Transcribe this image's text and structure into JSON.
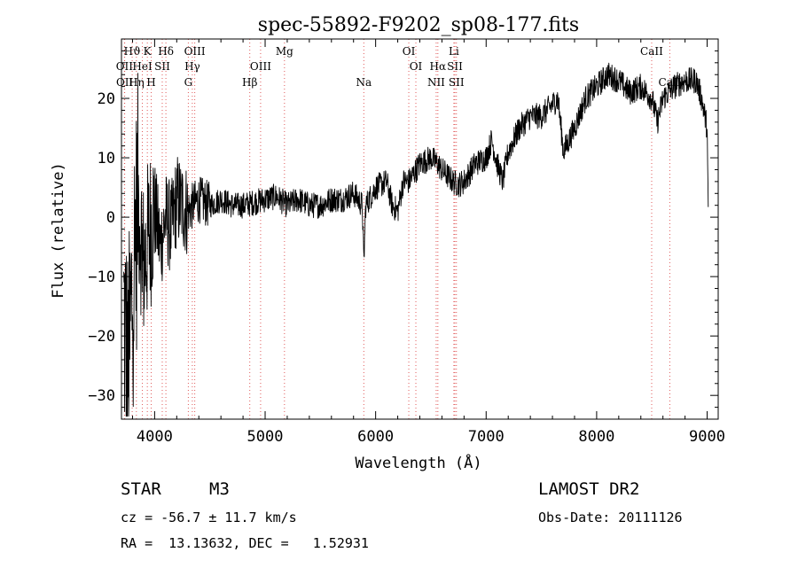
{
  "chart_data": {
    "type": "line",
    "title": "spec-55892-F9202_sp08-177.fits",
    "xlabel": "Wavelength (Å)",
    "ylabel": "Flux (relative)",
    "xlim": [
      3700,
      9100
    ],
    "ylim": [
      -34,
      30
    ],
    "xticks": [
      4000,
      5000,
      6000,
      7000,
      8000,
      9000
    ],
    "yticks": [
      -30,
      -20,
      -10,
      0,
      10,
      20
    ],
    "grid": false,
    "line_color": "#000000",
    "marker_color": "#e05a5a",
    "spectrum_knots": [
      {
        "x": 3720,
        "y": -16
      },
      {
        "x": 3760,
        "y": -27
      },
      {
        "x": 3800,
        "y": -12
      },
      {
        "x": 3850,
        "y": 3
      },
      {
        "x": 3900,
        "y": -8
      },
      {
        "x": 3950,
        "y": -3
      },
      {
        "x": 4000,
        "y": 2
      },
      {
        "x": 4050,
        "y": -5
      },
      {
        "x": 4100,
        "y": 0
      },
      {
        "x": 4150,
        "y": -2
      },
      {
        "x": 4200,
        "y": 3
      },
      {
        "x": 4300,
        "y": 1
      },
      {
        "x": 4400,
        "y": 3
      },
      {
        "x": 4500,
        "y": 2
      },
      {
        "x": 4600,
        "y": 3
      },
      {
        "x": 4700,
        "y": 2
      },
      {
        "x": 4800,
        "y": 2
      },
      {
        "x": 4900,
        "y": 2.5
      },
      {
        "x": 5000,
        "y": 3
      },
      {
        "x": 5100,
        "y": 3.5
      },
      {
        "x": 5200,
        "y": 2
      },
      {
        "x": 5300,
        "y": 3
      },
      {
        "x": 5400,
        "y": 2
      },
      {
        "x": 5500,
        "y": 2
      },
      {
        "x": 5600,
        "y": 3
      },
      {
        "x": 5700,
        "y": 3
      },
      {
        "x": 5800,
        "y": 4
      },
      {
        "x": 5880,
        "y": 2
      },
      {
        "x": 5893,
        "y": -8
      },
      {
        "x": 5910,
        "y": 2
      },
      {
        "x": 6000,
        "y": 5
      },
      {
        "x": 6100,
        "y": 6
      },
      {
        "x": 6150,
        "y": 2
      },
      {
        "x": 6200,
        "y": 1
      },
      {
        "x": 6250,
        "y": 6
      },
      {
        "x": 6300,
        "y": 6
      },
      {
        "x": 6400,
        "y": 9
      },
      {
        "x": 6500,
        "y": 10
      },
      {
        "x": 6560,
        "y": 9
      },
      {
        "x": 6600,
        "y": 8
      },
      {
        "x": 6700,
        "y": 6
      },
      {
        "x": 6750,
        "y": 5.5
      },
      {
        "x": 6800,
        "y": 6
      },
      {
        "x": 6900,
        "y": 9
      },
      {
        "x": 7000,
        "y": 10
      },
      {
        "x": 7050,
        "y": 13
      },
      {
        "x": 7100,
        "y": 9
      },
      {
        "x": 7150,
        "y": 6
      },
      {
        "x": 7200,
        "y": 11
      },
      {
        "x": 7300,
        "y": 15
      },
      {
        "x": 7400,
        "y": 17
      },
      {
        "x": 7500,
        "y": 17
      },
      {
        "x": 7600,
        "y": 19
      },
      {
        "x": 7650,
        "y": 20
      },
      {
        "x": 7700,
        "y": 11
      },
      {
        "x": 7750,
        "y": 13
      },
      {
        "x": 7800,
        "y": 15
      },
      {
        "x": 7900,
        "y": 20
      },
      {
        "x": 8000,
        "y": 22
      },
      {
        "x": 8100,
        "y": 24
      },
      {
        "x": 8200,
        "y": 23
      },
      {
        "x": 8300,
        "y": 21
      },
      {
        "x": 8400,
        "y": 22
      },
      {
        "x": 8500,
        "y": 20
      },
      {
        "x": 8550,
        "y": 16
      },
      {
        "x": 8600,
        "y": 20
      },
      {
        "x": 8700,
        "y": 22
      },
      {
        "x": 8800,
        "y": 23
      },
      {
        "x": 8900,
        "y": 23
      },
      {
        "x": 8950,
        "y": 20
      },
      {
        "x": 9000,
        "y": 15
      },
      {
        "x": 9010,
        "y": 0
      }
    ],
    "lines": [
      {
        "label": "Hϑ",
        "x": 3797,
        "row": 0
      },
      {
        "label": "K",
        "x": 3934,
        "row": 0
      },
      {
        "label": "Hδ",
        "x": 4102,
        "row": 0
      },
      {
        "label": "OIII",
        "x": 4363,
        "row": 0
      },
      {
        "label": "Mg",
        "x": 5175,
        "row": 0
      },
      {
        "label": "OI",
        "x": 6300,
        "row": 0
      },
      {
        "label": "Li",
        "x": 6708,
        "row": 0
      },
      {
        "label": "CaII",
        "x": 8498,
        "row": 0
      },
      {
        "label": "OII",
        "x": 3727,
        "row": 1
      },
      {
        "label": "HeI",
        "x": 3889,
        "row": 1
      },
      {
        "label": "SII",
        "x": 4069,
        "row": 1
      },
      {
        "label": "Hγ",
        "x": 4341,
        "row": 1
      },
      {
        "label": "OIII",
        "x": 4959,
        "row": 1
      },
      {
        "label": "OI",
        "x": 6364,
        "row": 1
      },
      {
        "label": "Hα",
        "x": 6563,
        "row": 1
      },
      {
        "label": "SII",
        "x": 6717,
        "row": 1
      },
      {
        "label": "OII",
        "x": 3729,
        "row": 2
      },
      {
        "label": "Hη",
        "x": 3835,
        "row": 2
      },
      {
        "label": "H",
        "x": 3969,
        "row": 2
      },
      {
        "label": "G",
        "x": 4305,
        "row": 2
      },
      {
        "label": "Hβ",
        "x": 4861,
        "row": 2
      },
      {
        "label": "Na",
        "x": 5893,
        "row": 2
      },
      {
        "label": "NII",
        "x": 6548,
        "row": 2
      },
      {
        "label": "SII",
        "x": 6731,
        "row": 2
      },
      {
        "label": "CaII",
        "x": 8662,
        "row": 2
      }
    ]
  },
  "info": {
    "object_type": "STAR",
    "subclass": "M3",
    "survey": "LAMOST DR2",
    "cz_line": "cz = -56.7 ± 11.7 km/s",
    "obs_date_line": "Obs-Date: 20111126",
    "coord_line": "RA =  13.13632, DEC =   1.52931"
  }
}
